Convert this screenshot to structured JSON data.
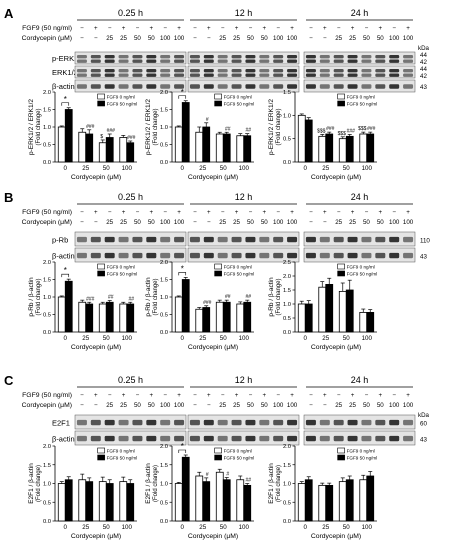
{
  "figure": {
    "panels": [
      {
        "letter": "A",
        "times": [
          "0.25 h",
          "12 h",
          "24 h"
        ],
        "header_rows": [
          {
            "label": "FGF9 (50 ng/ml)",
            "values": [
              "−",
              "+",
              "−",
              "+",
              "−",
              "+",
              "−",
              "+"
            ]
          },
          {
            "label": "Cordycepin (μM)",
            "values": [
              "−",
              "−",
              "25",
              "25",
              "50",
              "50",
              "100",
              "100"
            ]
          }
        ],
        "kda_header": "kDa",
        "blot_rows": [
          {
            "label": "p-ERK1/2",
            "kda": [
              "44",
              "42"
            ]
          },
          {
            "label": "ERK1/2",
            "kda": [
              "44",
              "42"
            ]
          },
          {
            "label": "β-actin",
            "kda": [
              "43"
            ]
          }
        ],
        "blot_height": 50
      },
      {
        "letter": "B",
        "times": [
          "0.25 h",
          "12 h",
          "24 h"
        ],
        "header_rows": [
          {
            "label": "FGF9 (50 ng/ml)",
            "values": [
              "−",
              "+",
              "−",
              "+",
              "−",
              "+",
              "−",
              "+"
            ]
          },
          {
            "label": "Cordycepin (μM)",
            "values": [
              "−",
              "−",
              "25",
              "25",
              "50",
              "50",
              "100",
              "100"
            ]
          }
        ],
        "kda_header": "",
        "blot_rows": [
          {
            "label": "p-Rb",
            "kda": [
              "110"
            ]
          },
          {
            "label": "β-actin",
            "kda": [
              "43"
            ]
          }
        ],
        "blot_height": 38
      },
      {
        "letter": "C",
        "times": [
          "0.25 h",
          "12 h",
          "24 h"
        ],
        "header_rows": [
          {
            "label": "FGF9 (50 ng/ml)",
            "values": [
              "−",
              "+",
              "−",
              "+",
              "−",
              "+",
              "−",
              "+"
            ]
          },
          {
            "label": "Cordycepin (μM)",
            "values": [
              "−",
              "−",
              "25",
              "25",
              "50",
              "50",
              "100",
              "100"
            ]
          }
        ],
        "kda_header": "kDa",
        "blot_rows": [
          {
            "label": "E2F1",
            "kda": [
              "60"
            ]
          },
          {
            "label": "β-actin",
            "kda": [
              "43"
            ]
          }
        ],
        "blot_height": 38
      }
    ],
    "colors": {
      "fgf9_0": "#ffffff",
      "fgf9_50": "#000000",
      "blot_bg": "#e4e4e4",
      "band": "#2a2a2a"
    }
  },
  "chart_data": [
    {
      "type": "bar",
      "panel": "A",
      "time": "0.25 h",
      "categories": [
        "0",
        "25",
        "50",
        "100"
      ],
      "xlabel": "Cordycepin (μM)",
      "ylabel": "p-ERK1/2 / ERK1/2",
      "ylabel2": "(Fold change)",
      "ylim": [
        0,
        2.0
      ],
      "yticks": [
        "0.0",
        "0.5",
        "1.0",
        "1.5",
        "2.0"
      ],
      "legend": "top-right",
      "series": [
        {
          "name": "FGF9  0 ng/ml",
          "values": [
            1.0,
            0.85,
            0.55,
            0.7
          ],
          "errors": [
            0.03,
            0.1,
            0.08,
            0.06
          ]
        },
        {
          "name": "FGF9 50 ng/ml",
          "values": [
            1.5,
            0.8,
            0.7,
            0.55
          ],
          "errors": [
            0.05,
            0.12,
            0.1,
            0.05
          ]
        }
      ],
      "annotations": [
        {
          "text": "*",
          "category": 0
        },
        {
          "text": "###",
          "category": 1,
          "series": 1
        },
        {
          "text": "$",
          "category": 2,
          "series": 0
        },
        {
          "text": "###",
          "category": 2,
          "series": 1
        },
        {
          "text": "###",
          "category": 3,
          "series": 1
        }
      ]
    },
    {
      "type": "bar",
      "panel": "A",
      "time": "12 h",
      "categories": [
        "0",
        "25",
        "50",
        "100"
      ],
      "xlabel": "Cordycepin (μM)",
      "ylabel": "p-ERK1/2 / ERK1/2",
      "ylabel2": "(Fold change)",
      "ylim": [
        0,
        2.0
      ],
      "yticks": [
        "0.0",
        "0.5",
        "1.0",
        "1.5",
        "2.0"
      ],
      "legend": "top-right",
      "series": [
        {
          "name": "FGF9  0 ng/ml",
          "values": [
            1.0,
            0.85,
            0.8,
            0.75
          ],
          "errors": [
            0.03,
            0.15,
            0.05,
            0.06
          ]
        },
        {
          "name": "FGF9 50 ng/ml",
          "values": [
            1.7,
            1.0,
            0.8,
            0.75
          ],
          "errors": [
            0.05,
            0.12,
            0.05,
            0.06
          ]
        }
      ],
      "annotations": [
        {
          "text": "*",
          "category": 0
        },
        {
          "text": "#",
          "category": 1,
          "series": 1
        },
        {
          "text": "##",
          "category": 2,
          "series": 1
        },
        {
          "text": "##",
          "category": 3,
          "series": 1
        }
      ]
    },
    {
      "type": "bar",
      "panel": "A",
      "time": "24 h",
      "categories": [
        "0",
        "25",
        "50",
        "100"
      ],
      "xlabel": "Cordycepin (μM)",
      "ylabel": "p-ERK1/2 / ERK1/2",
      "ylabel2": "(Fold change)",
      "ylim": [
        0,
        1.5
      ],
      "yticks": [
        "0.0",
        "0.5",
        "1.0",
        "1.5"
      ],
      "legend": "top-right",
      "series": [
        {
          "name": "FGF9  0 ng/ml",
          "values": [
            1.0,
            0.55,
            0.5,
            0.6
          ],
          "errors": [
            0.03,
            0.04,
            0.04,
            0.04
          ]
        },
        {
          "name": "FGF9 50 ng/ml",
          "values": [
            0.9,
            0.6,
            0.55,
            0.6
          ],
          "errors": [
            0.05,
            0.04,
            0.04,
            0.04
          ]
        }
      ],
      "annotations": [
        {
          "text": "$$$",
          "category": 1,
          "series": 0
        },
        {
          "text": "###",
          "category": 1,
          "series": 1
        },
        {
          "text": "$$$",
          "category": 2,
          "series": 0
        },
        {
          "text": "###",
          "category": 2,
          "series": 1
        },
        {
          "text": "$$$",
          "category": 3,
          "series": 0
        },
        {
          "text": "###",
          "category": 3,
          "series": 1
        }
      ]
    },
    {
      "type": "bar",
      "panel": "B",
      "time": "0.25 h",
      "categories": [
        "0",
        "25",
        "50",
        "100"
      ],
      "xlabel": "Cordycepin (μM)",
      "ylabel": "p-Rb / β-actin",
      "ylabel2": "(Fold change)",
      "ylim": [
        0,
        2.0
      ],
      "yticks": [
        "0.0",
        "0.5",
        "1.0",
        "1.5",
        "2.0"
      ],
      "legend": "top-right",
      "series": [
        {
          "name": "FGF9  0 ng/ml",
          "values": [
            1.0,
            0.85,
            0.8,
            0.8
          ],
          "errors": [
            0.03,
            0.06,
            0.05,
            0.05
          ]
        },
        {
          "name": "FGF9 50 ng/ml",
          "values": [
            1.45,
            0.8,
            0.85,
            0.8
          ],
          "errors": [
            0.06,
            0.05,
            0.05,
            0.05
          ]
        }
      ],
      "annotations": [
        {
          "text": "*",
          "category": 0
        },
        {
          "text": "###",
          "category": 1,
          "series": 1
        },
        {
          "text": "##",
          "category": 2,
          "series": 1
        },
        {
          "text": "##",
          "category": 3,
          "series": 1
        }
      ]
    },
    {
      "type": "bar",
      "panel": "B",
      "time": "12 h",
      "categories": [
        "0",
        "25",
        "50",
        "100"
      ],
      "xlabel": "Cordycepin (μM)",
      "ylabel": "p-Rb / β-actin",
      "ylabel2": "(Fold change)",
      "ylim": [
        0,
        2.0
      ],
      "yticks": [
        "0.0",
        "0.5",
        "1.0",
        "1.5",
        "2.0"
      ],
      "legend": "top-right",
      "series": [
        {
          "name": "FGF9  0 ng/ml",
          "values": [
            1.0,
            0.65,
            0.85,
            0.8
          ],
          "errors": [
            0.03,
            0.05,
            0.06,
            0.06
          ]
        },
        {
          "name": "FGF9 50 ng/ml",
          "values": [
            1.5,
            0.7,
            0.85,
            0.85
          ],
          "errors": [
            0.06,
            0.05,
            0.06,
            0.06
          ]
        }
      ],
      "annotations": [
        {
          "text": "*",
          "category": 0
        },
        {
          "text": "###",
          "category": 1,
          "series": 1
        },
        {
          "text": "##",
          "category": 2,
          "series": 1
        },
        {
          "text": "##",
          "category": 3,
          "series": 1
        }
      ]
    },
    {
      "type": "bar",
      "panel": "B",
      "time": "24 h",
      "categories": [
        "0",
        "25",
        "50",
        "100"
      ],
      "xlabel": "Cordycepin (μM)",
      "ylabel": "p-Rb / β-actin",
      "ylabel2": "(Fold change)",
      "ylim": [
        0,
        2.5
      ],
      "yticks": [
        "0.0",
        "0.5",
        "1.0",
        "1.5",
        "2.0",
        "2.5"
      ],
      "legend": "top-right",
      "series": [
        {
          "name": "FGF9  0 ng/ml",
          "values": [
            1.0,
            1.6,
            1.45,
            0.7
          ],
          "errors": [
            0.1,
            0.2,
            0.3,
            0.12
          ]
        },
        {
          "name": "FGF9 50 ng/ml",
          "values": [
            1.0,
            1.7,
            1.5,
            0.7
          ],
          "errors": [
            0.12,
            0.22,
            0.35,
            0.1
          ]
        }
      ],
      "annotations": []
    },
    {
      "type": "bar",
      "panel": "C",
      "time": "0.25 h",
      "categories": [
        "0",
        "25",
        "50",
        "100"
      ],
      "xlabel": "Cordycepin (μM)",
      "ylabel": "E2F1 / β-actin",
      "ylabel2": "(Fold change)",
      "ylim": [
        0,
        2.0
      ],
      "yticks": [
        "0.0",
        "0.5",
        "1.0",
        "1.5",
        "2.0"
      ],
      "legend": "top-right",
      "series": [
        {
          "name": "FGF9  0 ng/ml",
          "values": [
            1.0,
            1.1,
            1.05,
            1.05
          ],
          "errors": [
            0.05,
            0.15,
            0.12,
            0.12
          ]
        },
        {
          "name": "FGF9 50 ng/ml",
          "values": [
            1.1,
            1.05,
            1.0,
            1.0
          ],
          "errors": [
            0.08,
            0.1,
            0.1,
            0.1
          ]
        }
      ],
      "annotations": []
    },
    {
      "type": "bar",
      "panel": "C",
      "time": "12 h",
      "categories": [
        "0",
        "25",
        "50",
        "100"
      ],
      "xlabel": "Cordycepin (μM)",
      "ylabel": "E2F1 / β-actin",
      "ylabel2": "(Fold change)",
      "ylim": [
        0,
        2.0
      ],
      "yticks": [
        "0.0",
        "0.5",
        "1.0",
        "1.5",
        "2.0"
      ],
      "legend": "top-right",
      "series": [
        {
          "name": "FGF9  0 ng/ml",
          "values": [
            1.0,
            1.2,
            1.3,
            1.1
          ],
          "errors": [
            0.03,
            0.1,
            0.08,
            0.1
          ]
        },
        {
          "name": "FGF9 50 ng/ml",
          "values": [
            1.7,
            1.05,
            1.1,
            0.95
          ],
          "errors": [
            0.06,
            0.1,
            0.06,
            0.05
          ]
        }
      ],
      "annotations": [
        {
          "text": "*",
          "category": 0
        },
        {
          "text": "#",
          "category": 1,
          "series": 1
        },
        {
          "text": "#",
          "category": 2,
          "series": 1
        },
        {
          "text": "##",
          "category": 3,
          "series": 1
        }
      ]
    },
    {
      "type": "bar",
      "panel": "C",
      "time": "24 h",
      "categories": [
        "0",
        "25",
        "50",
        "100"
      ],
      "xlabel": "Cordycepin (μM)",
      "ylabel": "E2F1 / β-actin",
      "ylabel2": "(Fold change)",
      "ylim": [
        0,
        2.0
      ],
      "yticks": [
        "0.0",
        "0.5",
        "1.0",
        "1.5",
        "2.0"
      ],
      "legend": "top-right",
      "series": [
        {
          "name": "FGF9  0 ng/ml",
          "values": [
            1.0,
            0.95,
            1.05,
            1.1
          ],
          "errors": [
            0.05,
            0.06,
            0.1,
            0.12
          ]
        },
        {
          "name": "FGF9 50 ng/ml",
          "values": [
            1.1,
            0.95,
            1.1,
            1.2
          ],
          "errors": [
            0.08,
            0.06,
            0.1,
            0.12
          ]
        }
      ],
      "annotations": []
    }
  ]
}
